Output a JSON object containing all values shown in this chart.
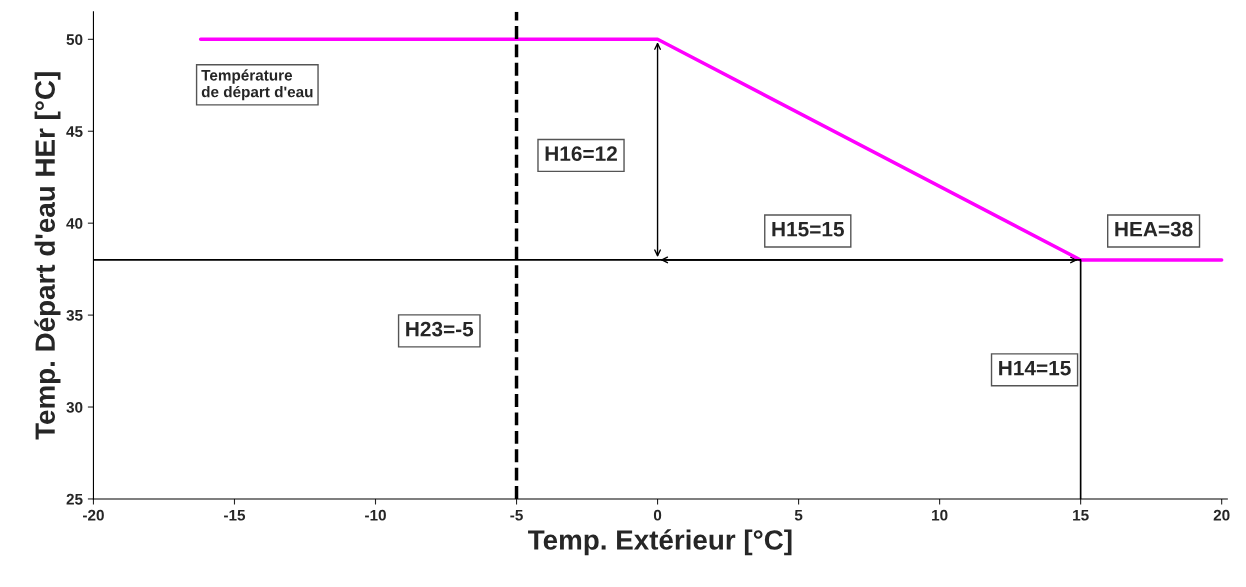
{
  "chart_data": {
    "type": "line",
    "xlabel": "Temp. Extérieur [°C]",
    "ylabel": "Temp. Départ d'eau HEr [°C]",
    "xlim": [
      -20,
      20.2
    ],
    "ylim": [
      25,
      51.5
    ],
    "xticks": [
      -20,
      -15,
      -10,
      -5,
      0,
      5,
      10,
      15,
      20
    ],
    "yticks": [
      25,
      30,
      35,
      40,
      45,
      50
    ],
    "grid": false,
    "legend": false,
    "marker": "none",
    "line_style": "solid",
    "series": [
      {
        "color": "#ff00ff",
        "x": [
          -16.2,
          0,
          15,
          20
        ],
        "values": [
          50,
          50,
          38,
          38
        ]
      },
      {
        "color": "#000000",
        "x": [
          -20,
          15,
          15
        ],
        "values": [
          38,
          38,
          25
        ]
      }
    ],
    "ref_lines": [
      {
        "axis": "x",
        "value": -5,
        "color": "#000000",
        "line_style": "dashed"
      }
    ],
    "annotations": [
      "Température\nde départ d'eau",
      "H16=12",
      "H15=15",
      "HEA=38",
      "H23=-5",
      "H14=15"
    ]
  }
}
